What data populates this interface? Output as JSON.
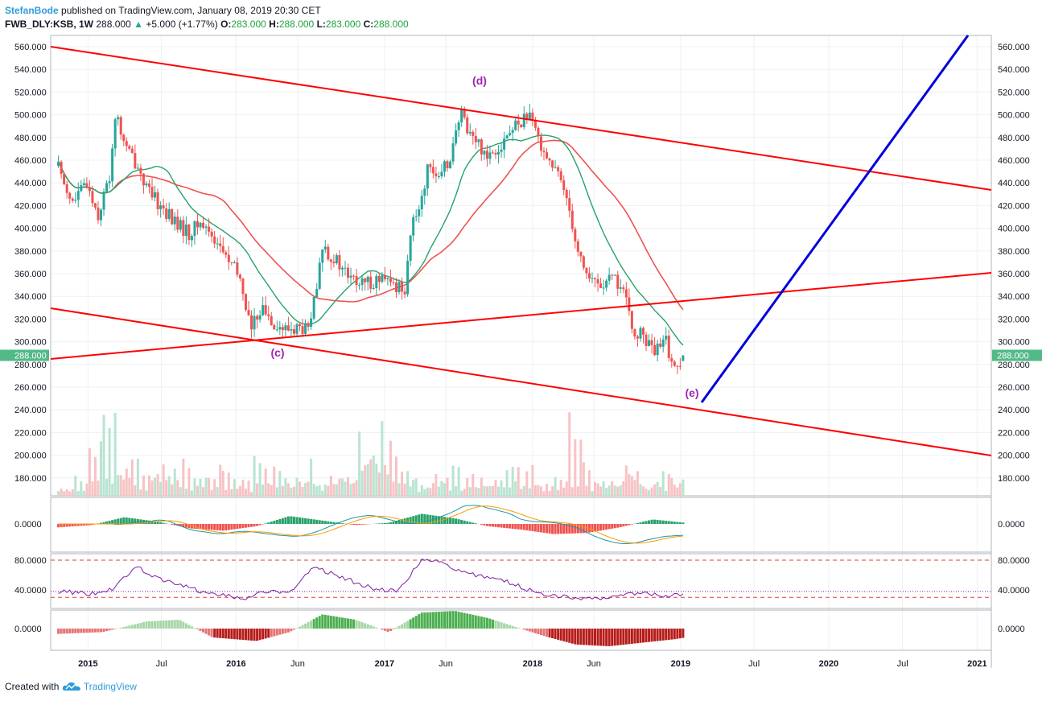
{
  "header": {
    "author": "StefanBode",
    "published": " published on TradingView.com, January 08, 2019 20:30 CET",
    "symbol": "FWB_DLY:KSB, 1W",
    "last": "288.000",
    "change_arrow": "▲",
    "change": "+5.000 (+1.77%)",
    "open_label": "O:",
    "open": "283.000",
    "high_label": "H:",
    "high": "288.000",
    "low_label": "L:",
    "low": "283.000",
    "close_label": "C:",
    "close": "288.000"
  },
  "footer": {
    "created_with": "Created with",
    "brand": "TradingView",
    "logo_icon": "tradingview-cloud-icon"
  },
  "colors": {
    "up": "#26a69a",
    "down": "#ef5350",
    "channel": "#ff0000",
    "projection": "#0000dd",
    "annotation": "#9c27b0",
    "ma_slow": "#ef5350",
    "ma_fast": "#26a269",
    "price_tag": "#53b987"
  },
  "chart_data": [
    {
      "type": "candlestick",
      "interval": "1W",
      "x_ticks": [
        "2015",
        "Jul",
        "2016",
        "Jun",
        "2017",
        "Jun",
        "2018",
        "Jun",
        "2019",
        "Jul",
        "2020",
        "Jul",
        "2021"
      ],
      "y_ticks": [
        "560.000",
        "540.000",
        "520.000",
        "500.000",
        "480.000",
        "460.000",
        "440.000",
        "420.000",
        "400.000",
        "380.000",
        "360.000",
        "340.000",
        "320.000",
        "300.000",
        "280.000",
        "260.000",
        "240.000",
        "220.000",
        "200.000",
        "180.000"
      ],
      "ylim": [
        166,
        570
      ],
      "last_price_label": "288.000",
      "price_path": [
        [
          "2014-10-20",
          455
        ],
        [
          "2014-11-24",
          422
        ],
        [
          "2014-12-29",
          440
        ],
        [
          "2015-01-26",
          412
        ],
        [
          "2015-02-23",
          445
        ],
        [
          "2015-03-09",
          500
        ],
        [
          "2015-04-06",
          470
        ],
        [
          "2015-05-04",
          455
        ],
        [
          "2015-06-01",
          430
        ],
        [
          "2015-06-29",
          420
        ],
        [
          "2015-08-03",
          405
        ],
        [
          "2015-09-07",
          395
        ],
        [
          "2015-10-05",
          405
        ],
        [
          "2015-11-02",
          395
        ],
        [
          "2015-12-07",
          375
        ],
        [
          "2016-01-11",
          355
        ],
        [
          "2016-02-08",
          310
        ],
        [
          "2016-02-29",
          330
        ],
        [
          "2016-03-28",
          320
        ],
        [
          "2016-04-25",
          310
        ],
        [
          "2016-05-30",
          312
        ],
        [
          "2016-06-27",
          310
        ],
        [
          "2016-07-18",
          345
        ],
        [
          "2016-08-01",
          385
        ],
        [
          "2016-09-05",
          370
        ],
        [
          "2016-10-10",
          355
        ],
        [
          "2016-11-07",
          350
        ],
        [
          "2016-12-12",
          355
        ],
        [
          "2017-01-23",
          350
        ],
        [
          "2017-02-20",
          348
        ],
        [
          "2017-03-06",
          395
        ],
        [
          "2017-03-27",
          420
        ],
        [
          "2017-04-24",
          460
        ],
        [
          "2017-05-15",
          440
        ],
        [
          "2017-06-12",
          465
        ],
        [
          "2017-07-10",
          500
        ],
        [
          "2017-08-07",
          480
        ],
        [
          "2017-09-11",
          465
        ],
        [
          "2017-10-16",
          475
        ],
        [
          "2017-11-20",
          490
        ],
        [
          "2017-12-18",
          500
        ],
        [
          "2018-01-15",
          480
        ],
        [
          "2018-02-12",
          460
        ],
        [
          "2018-03-12",
          440
        ],
        [
          "2018-03-26",
          430
        ],
        [
          "2018-04-23",
          380
        ],
        [
          "2018-05-21",
          355
        ],
        [
          "2018-06-18",
          350
        ],
        [
          "2018-07-23",
          355
        ],
        [
          "2018-08-13",
          345
        ],
        [
          "2018-09-03",
          310
        ],
        [
          "2018-10-01",
          305
        ],
        [
          "2018-10-29",
          290
        ],
        [
          "2018-11-26",
          300
        ],
        [
          "2018-12-17",
          275
        ],
        [
          "2019-01-07",
          288
        ]
      ],
      "volume_ylim": [
        0,
        1
      ],
      "volume_path": [
        [
          0.12,
          0.15
        ],
        [
          0.3,
          0.1
        ],
        [
          0.15,
          0.55
        ],
        [
          0.8,
          0.2
        ],
        [
          0.4,
          0.45
        ],
        [
          0.5,
          0.1
        ],
        [
          0.2,
          0.35
        ],
        [
          0.15,
          0.3
        ],
        [
          0.45,
          0.1
        ],
        [
          0.18,
          0.22
        ],
        [
          0.12,
          0.3
        ],
        [
          0.25,
          0.08
        ],
        [
          0.1,
          0.15
        ],
        [
          0.2,
          0.4
        ],
        [
          0.3,
          0.12
        ],
        [
          0.22,
          0.18
        ],
        [
          0.15,
          0.35
        ],
        [
          0.12,
          0.1
        ],
        [
          0.25,
          0.2
        ],
        [
          0.18,
          0.15
        ],
        [
          0.6,
          0.4
        ],
        [
          0.75,
          0.5
        ],
        [
          0.3,
          0.65
        ],
        [
          0.2,
          0.28
        ],
        [
          0.15,
          0.1
        ],
        [
          0.2,
          0.25
        ],
        [
          0.12,
          0.3
        ],
        [
          0.22,
          0.1
        ],
        [
          0.15,
          0.18
        ],
        [
          0.2,
          0.1
        ],
        [
          0.35,
          0.15
        ],
        [
          0.1,
          0.4
        ],
        [
          0.18,
          0.12
        ],
        [
          0.12,
          0.2
        ],
        [
          0.8,
          0.15
        ],
        [
          0.1,
          0.35
        ],
        [
          0.2,
          0.1
        ],
        [
          0.25,
          0.15
        ],
        [
          0.4,
          0.2
        ],
        [
          0.15,
          0.1
        ],
        [
          0.1,
          0.25
        ],
        [
          0.2,
          0.12
        ]
      ],
      "annotations": [
        "(c)",
        "(d)",
        "(e)"
      ],
      "grid": true
    },
    {
      "type": "line",
      "name": "MACD panel",
      "y_ticks": [
        "0.0000"
      ],
      "histogram_path": [
        [
          0,
          -0.3
        ],
        [
          3,
          -0.1
        ],
        [
          6,
          0.6
        ],
        [
          9,
          0.2
        ],
        [
          12,
          -0.4
        ],
        [
          15,
          -0.6
        ],
        [
          18,
          -0.2
        ],
        [
          21,
          0.7
        ],
        [
          24,
          0.3
        ],
        [
          27,
          -0.1
        ],
        [
          30,
          0.1
        ],
        [
          33,
          0.9
        ],
        [
          36,
          0.5
        ],
        [
          39,
          -0.2
        ],
        [
          42,
          -0.5
        ],
        [
          45,
          -0.9
        ],
        [
          48,
          -0.8
        ],
        [
          51,
          -0.3
        ],
        [
          54,
          0.4
        ],
        [
          57,
          0.1
        ]
      ]
    },
    {
      "type": "line",
      "name": "RSI panel",
      "y_ticks": [
        "80.0000",
        "40.0000"
      ],
      "levels": [
        80,
        38,
        30
      ],
      "ylim": [
        20,
        90
      ],
      "path": [
        [
          0,
          38
        ],
        [
          3,
          35
        ],
        [
          5,
          42
        ],
        [
          7,
          72
        ],
        [
          9,
          55
        ],
        [
          11,
          48
        ],
        [
          13,
          38
        ],
        [
          15,
          32
        ],
        [
          17,
          29
        ],
        [
          19,
          38
        ],
        [
          21,
          35
        ],
        [
          23,
          70
        ],
        [
          25,
          62
        ],
        [
          27,
          50
        ],
        [
          29,
          40
        ],
        [
          31,
          40
        ],
        [
          33,
          82
        ],
        [
          35,
          76
        ],
        [
          37,
          62
        ],
        [
          39,
          58
        ],
        [
          41,
          50
        ],
        [
          43,
          38
        ],
        [
          45,
          32
        ],
        [
          47,
          30
        ],
        [
          49,
          28
        ],
        [
          51,
          32
        ],
        [
          53,
          38
        ],
        [
          55,
          32
        ],
        [
          57,
          36
        ]
      ]
    },
    {
      "type": "bar",
      "name": "Momentum panel",
      "y_ticks": [
        "0.0000"
      ],
      "path": [
        [
          0,
          -0.3
        ],
        [
          4,
          -0.2
        ],
        [
          8,
          0.4
        ],
        [
          11,
          0.5
        ],
        [
          14,
          -0.5
        ],
        [
          18,
          -0.7
        ],
        [
          21,
          -0.2
        ],
        [
          24,
          0.8
        ],
        [
          27,
          0.5
        ],
        [
          30,
          -0.2
        ],
        [
          33,
          0.9
        ],
        [
          36,
          1.0
        ],
        [
          39,
          0.6
        ],
        [
          41,
          0.2
        ],
        [
          44,
          -0.4
        ],
        [
          47,
          -0.9
        ],
        [
          50,
          -1.0
        ],
        [
          53,
          -0.8
        ],
        [
          56,
          -0.6
        ],
        [
          57,
          -0.5
        ]
      ]
    }
  ]
}
